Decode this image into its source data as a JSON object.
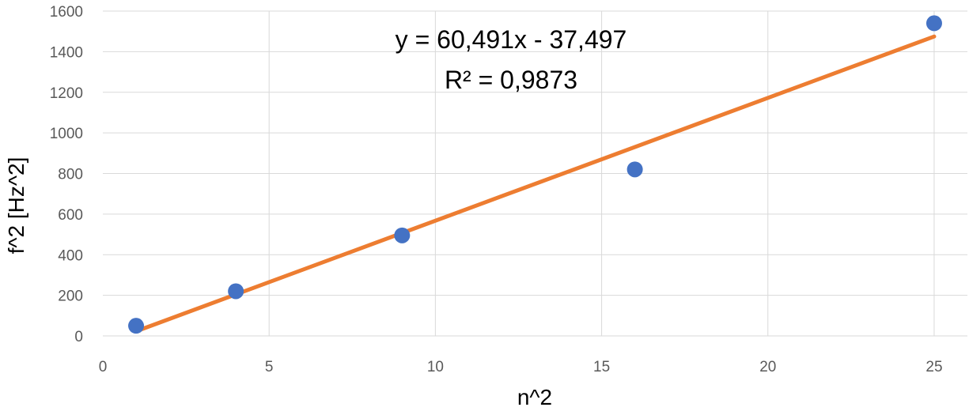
{
  "chart_data": {
    "type": "scatter",
    "title": "",
    "xlabel": "n^2",
    "ylabel": "f^2 [Hz^2]",
    "xlim": [
      0,
      26
    ],
    "ylim": [
      0,
      1600
    ],
    "x_ticks": [
      0,
      5,
      10,
      15,
      20,
      25
    ],
    "y_ticks": [
      0,
      200,
      400,
      600,
      800,
      1000,
      1200,
      1400,
      1600
    ],
    "grid": true,
    "series": [
      {
        "x": [
          1,
          4,
          9,
          16,
          25
        ],
        "y": [
          50,
          220,
          495,
          820,
          1540
        ],
        "color": "#4472c4"
      }
    ],
    "trendline": {
      "type": "linear",
      "slope": 60.491,
      "intercept": -37.497,
      "x_range": [
        1,
        25
      ],
      "color": "#ed7d31",
      "equation_label": "y = 60,491x - 37,497",
      "r2_label": "R² = 0,9873"
    }
  }
}
